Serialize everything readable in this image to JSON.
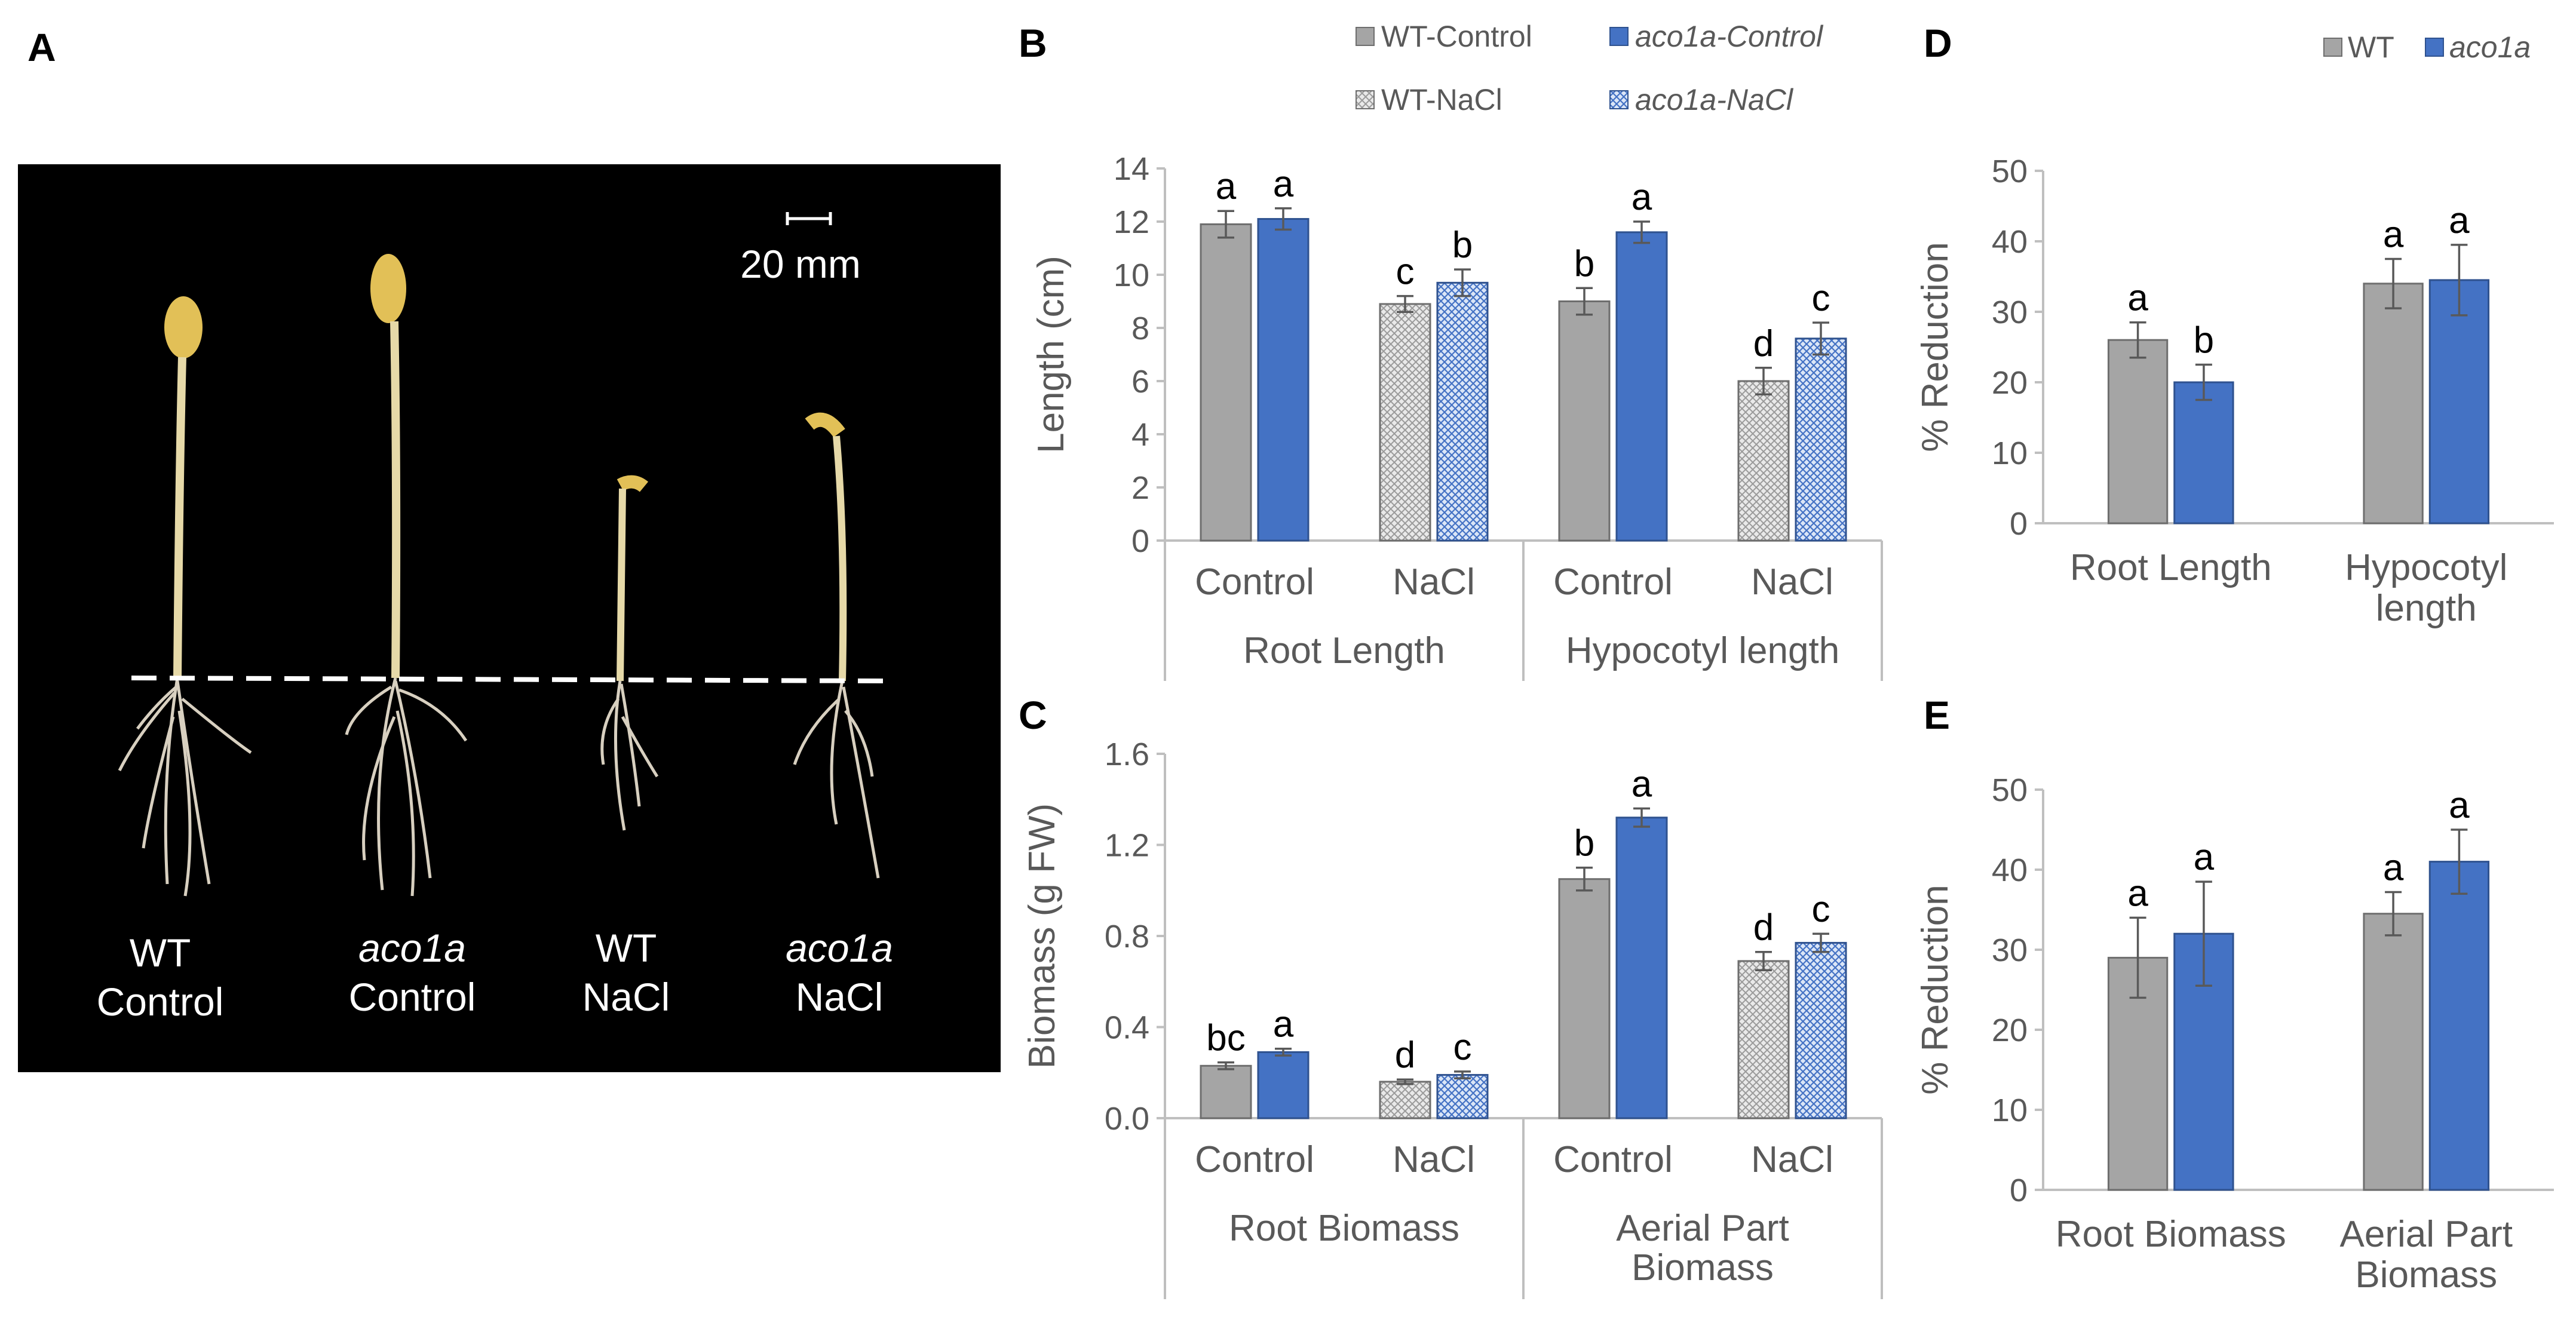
{
  "panel_labels": {
    "A": "A",
    "B": "B",
    "C": "C",
    "D": "D",
    "E": "E"
  },
  "colors": {
    "wt": "#a5a5a5",
    "aco1a": "#4472c4",
    "axis": "#bfbfbf",
    "photo_bg": "#000000"
  },
  "photo": {
    "scale_bar": "20 mm",
    "labels": [
      {
        "line1": "WT",
        "line2": "Control",
        "italic1": false
      },
      {
        "line1": "aco1a",
        "line2": "Control",
        "italic1": true
      },
      {
        "line1": "WT",
        "line2": "NaCl",
        "italic1": false
      },
      {
        "line1": "aco1a",
        "line2": "NaCl",
        "italic1": true
      }
    ]
  },
  "legend_bc": {
    "wt_control": "WT-Control",
    "aco1a_control": "aco1a-Control",
    "wt_nacl": "WT-NaCl",
    "aco1a_nacl": "aco1a-NaCl"
  },
  "legend_de": {
    "wt": "WT",
    "aco1a": "aco1a"
  },
  "chart_data": [
    {
      "panel": "B",
      "type": "bar",
      "ylabel": "Length (cm)",
      "ylim": [
        0,
        14
      ],
      "yticks": [
        0,
        2,
        4,
        6,
        8,
        10,
        12,
        14
      ],
      "groups": [
        {
          "label": "Root Length",
          "conditions": [
            {
              "label": "Control",
              "bars": [
                {
                  "series": "WT-Control",
                  "value": 11.9,
                  "err": 0.5,
                  "letter": "a"
                },
                {
                  "series": "aco1a-Control",
                  "value": 12.1,
                  "err": 0.4,
                  "letter": "a"
                }
              ]
            },
            {
              "label": "NaCl",
              "bars": [
                {
                  "series": "WT-NaCl",
                  "value": 8.9,
                  "err": 0.3,
                  "letter": "c"
                },
                {
                  "series": "aco1a-NaCl",
                  "value": 9.7,
                  "err": 0.5,
                  "letter": "b"
                }
              ]
            }
          ]
        },
        {
          "label": "Hypocotyl length",
          "conditions": [
            {
              "label": "Control",
              "bars": [
                {
                  "series": "WT-Control",
                  "value": 9.0,
                  "err": 0.5,
                  "letter": "b"
                },
                {
                  "series": "aco1a-Control",
                  "value": 11.6,
                  "err": 0.4,
                  "letter": "a"
                }
              ]
            },
            {
              "label": "NaCl",
              "bars": [
                {
                  "series": "WT-NaCl",
                  "value": 6.0,
                  "err": 0.5,
                  "letter": "d"
                },
                {
                  "series": "aco1a-NaCl",
                  "value": 7.6,
                  "err": 0.6,
                  "letter": "c"
                }
              ]
            }
          ]
        }
      ]
    },
    {
      "panel": "C",
      "type": "bar",
      "ylabel": "Biomass (g FW)",
      "ylim": [
        0,
        1.6
      ],
      "yticks": [
        "0.0",
        "0.4",
        "0.8",
        "1.2",
        "1.6"
      ],
      "groups": [
        {
          "label": "Root Biomass",
          "conditions": [
            {
              "label": "Control",
              "bars": [
                {
                  "series": "WT-Control",
                  "value": 0.23,
                  "err": 0.015,
                  "letter": "bc"
                },
                {
                  "series": "aco1a-Control",
                  "value": 0.29,
                  "err": 0.015,
                  "letter": "a"
                }
              ]
            },
            {
              "label": "NaCl",
              "bars": [
                {
                  "series": "WT-NaCl",
                  "value": 0.16,
                  "err": 0.01,
                  "letter": "d"
                },
                {
                  "series": "aco1a-NaCl",
                  "value": 0.19,
                  "err": 0.015,
                  "letter": "c"
                }
              ]
            }
          ]
        },
        {
          "label": "Aerial  Part Biomass",
          "label_lines": [
            "Aerial  Part",
            "Biomass"
          ],
          "conditions": [
            {
              "label": "Control",
              "bars": [
                {
                  "series": "WT-Control",
                  "value": 1.05,
                  "err": 0.05,
                  "letter": "b"
                },
                {
                  "series": "aco1a-Control",
                  "value": 1.32,
                  "err": 0.04,
                  "letter": "a"
                }
              ]
            },
            {
              "label": "NaCl",
              "bars": [
                {
                  "series": "WT-NaCl",
                  "value": 0.69,
                  "err": 0.04,
                  "letter": "d"
                },
                {
                  "series": "aco1a-NaCl",
                  "value": 0.77,
                  "err": 0.04,
                  "letter": "c"
                }
              ]
            }
          ]
        }
      ]
    },
    {
      "panel": "D",
      "type": "bar",
      "ylabel": "% Reduction",
      "ylim": [
        0,
        50
      ],
      "yticks": [
        0,
        10,
        20,
        30,
        40,
        50
      ],
      "categories": [
        "Root Length",
        "Hypocotyl length"
      ],
      "category_lines": [
        [
          "Root Length"
        ],
        [
          "Hypocotyl",
          "length"
        ]
      ],
      "series": [
        {
          "name": "WT",
          "values": [
            26,
            34
          ],
          "err": [
            2.5,
            3.5
          ],
          "letters": [
            "a",
            "a"
          ]
        },
        {
          "name": "aco1a",
          "values": [
            20,
            34.5
          ],
          "err": [
            2.5,
            5
          ],
          "letters": [
            "b",
            "a"
          ]
        }
      ]
    },
    {
      "panel": "E",
      "type": "bar",
      "ylabel": "% Reduction",
      "ylim": [
        0,
        50
      ],
      "yticks": [
        0,
        10,
        20,
        30,
        40,
        50
      ],
      "categories": [
        "Root Biomass",
        "Aerial  Part Biomass"
      ],
      "category_lines": [
        [
          "Root Biomass"
        ],
        [
          "Aerial  Part",
          "Biomass"
        ]
      ],
      "series": [
        {
          "name": "WT",
          "values": [
            29,
            34.5
          ],
          "err": [
            5,
            2.7
          ],
          "letters": [
            "a",
            "a"
          ]
        },
        {
          "name": "aco1a",
          "values": [
            32,
            41
          ],
          "err": [
            6.5,
            4
          ],
          "letters": [
            "a",
            "a"
          ]
        }
      ]
    }
  ]
}
